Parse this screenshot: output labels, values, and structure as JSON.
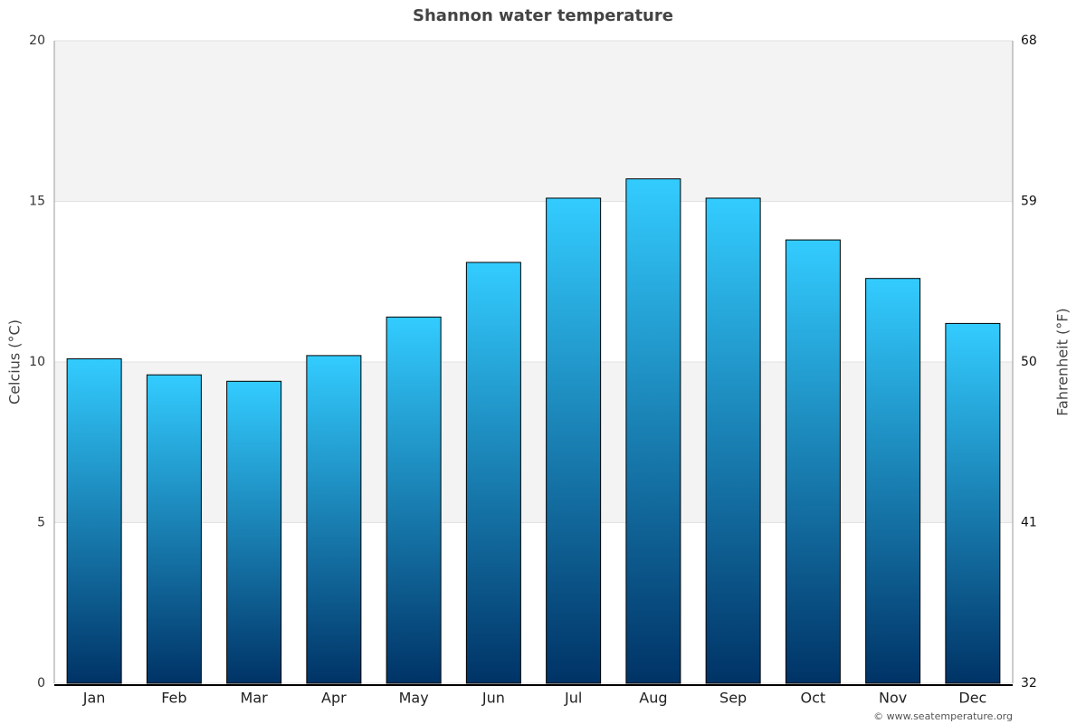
{
  "chart_data": {
    "type": "bar",
    "title": "Shannon water temperature",
    "ylabel": "Celcius (°C)",
    "y2label": "Fahrenheit (°F)",
    "categories": [
      "Jan",
      "Feb",
      "Mar",
      "Apr",
      "May",
      "Jun",
      "Jul",
      "Aug",
      "Sep",
      "Oct",
      "Nov",
      "Dec"
    ],
    "values": [
      10.1,
      9.6,
      9.4,
      10.2,
      11.4,
      13.1,
      15.1,
      15.7,
      15.1,
      13.8,
      12.6,
      11.2
    ],
    "gradient": [
      "#33ccff",
      "#003366"
    ],
    "ylim": [
      0,
      20
    ],
    "yticks": [
      0,
      5,
      10,
      15,
      20
    ],
    "y2lim": [
      32,
      68
    ],
    "y2ticks": [
      32,
      41,
      50,
      59,
      68
    ],
    "grid": true,
    "source": "© www.seatemperature.org"
  }
}
